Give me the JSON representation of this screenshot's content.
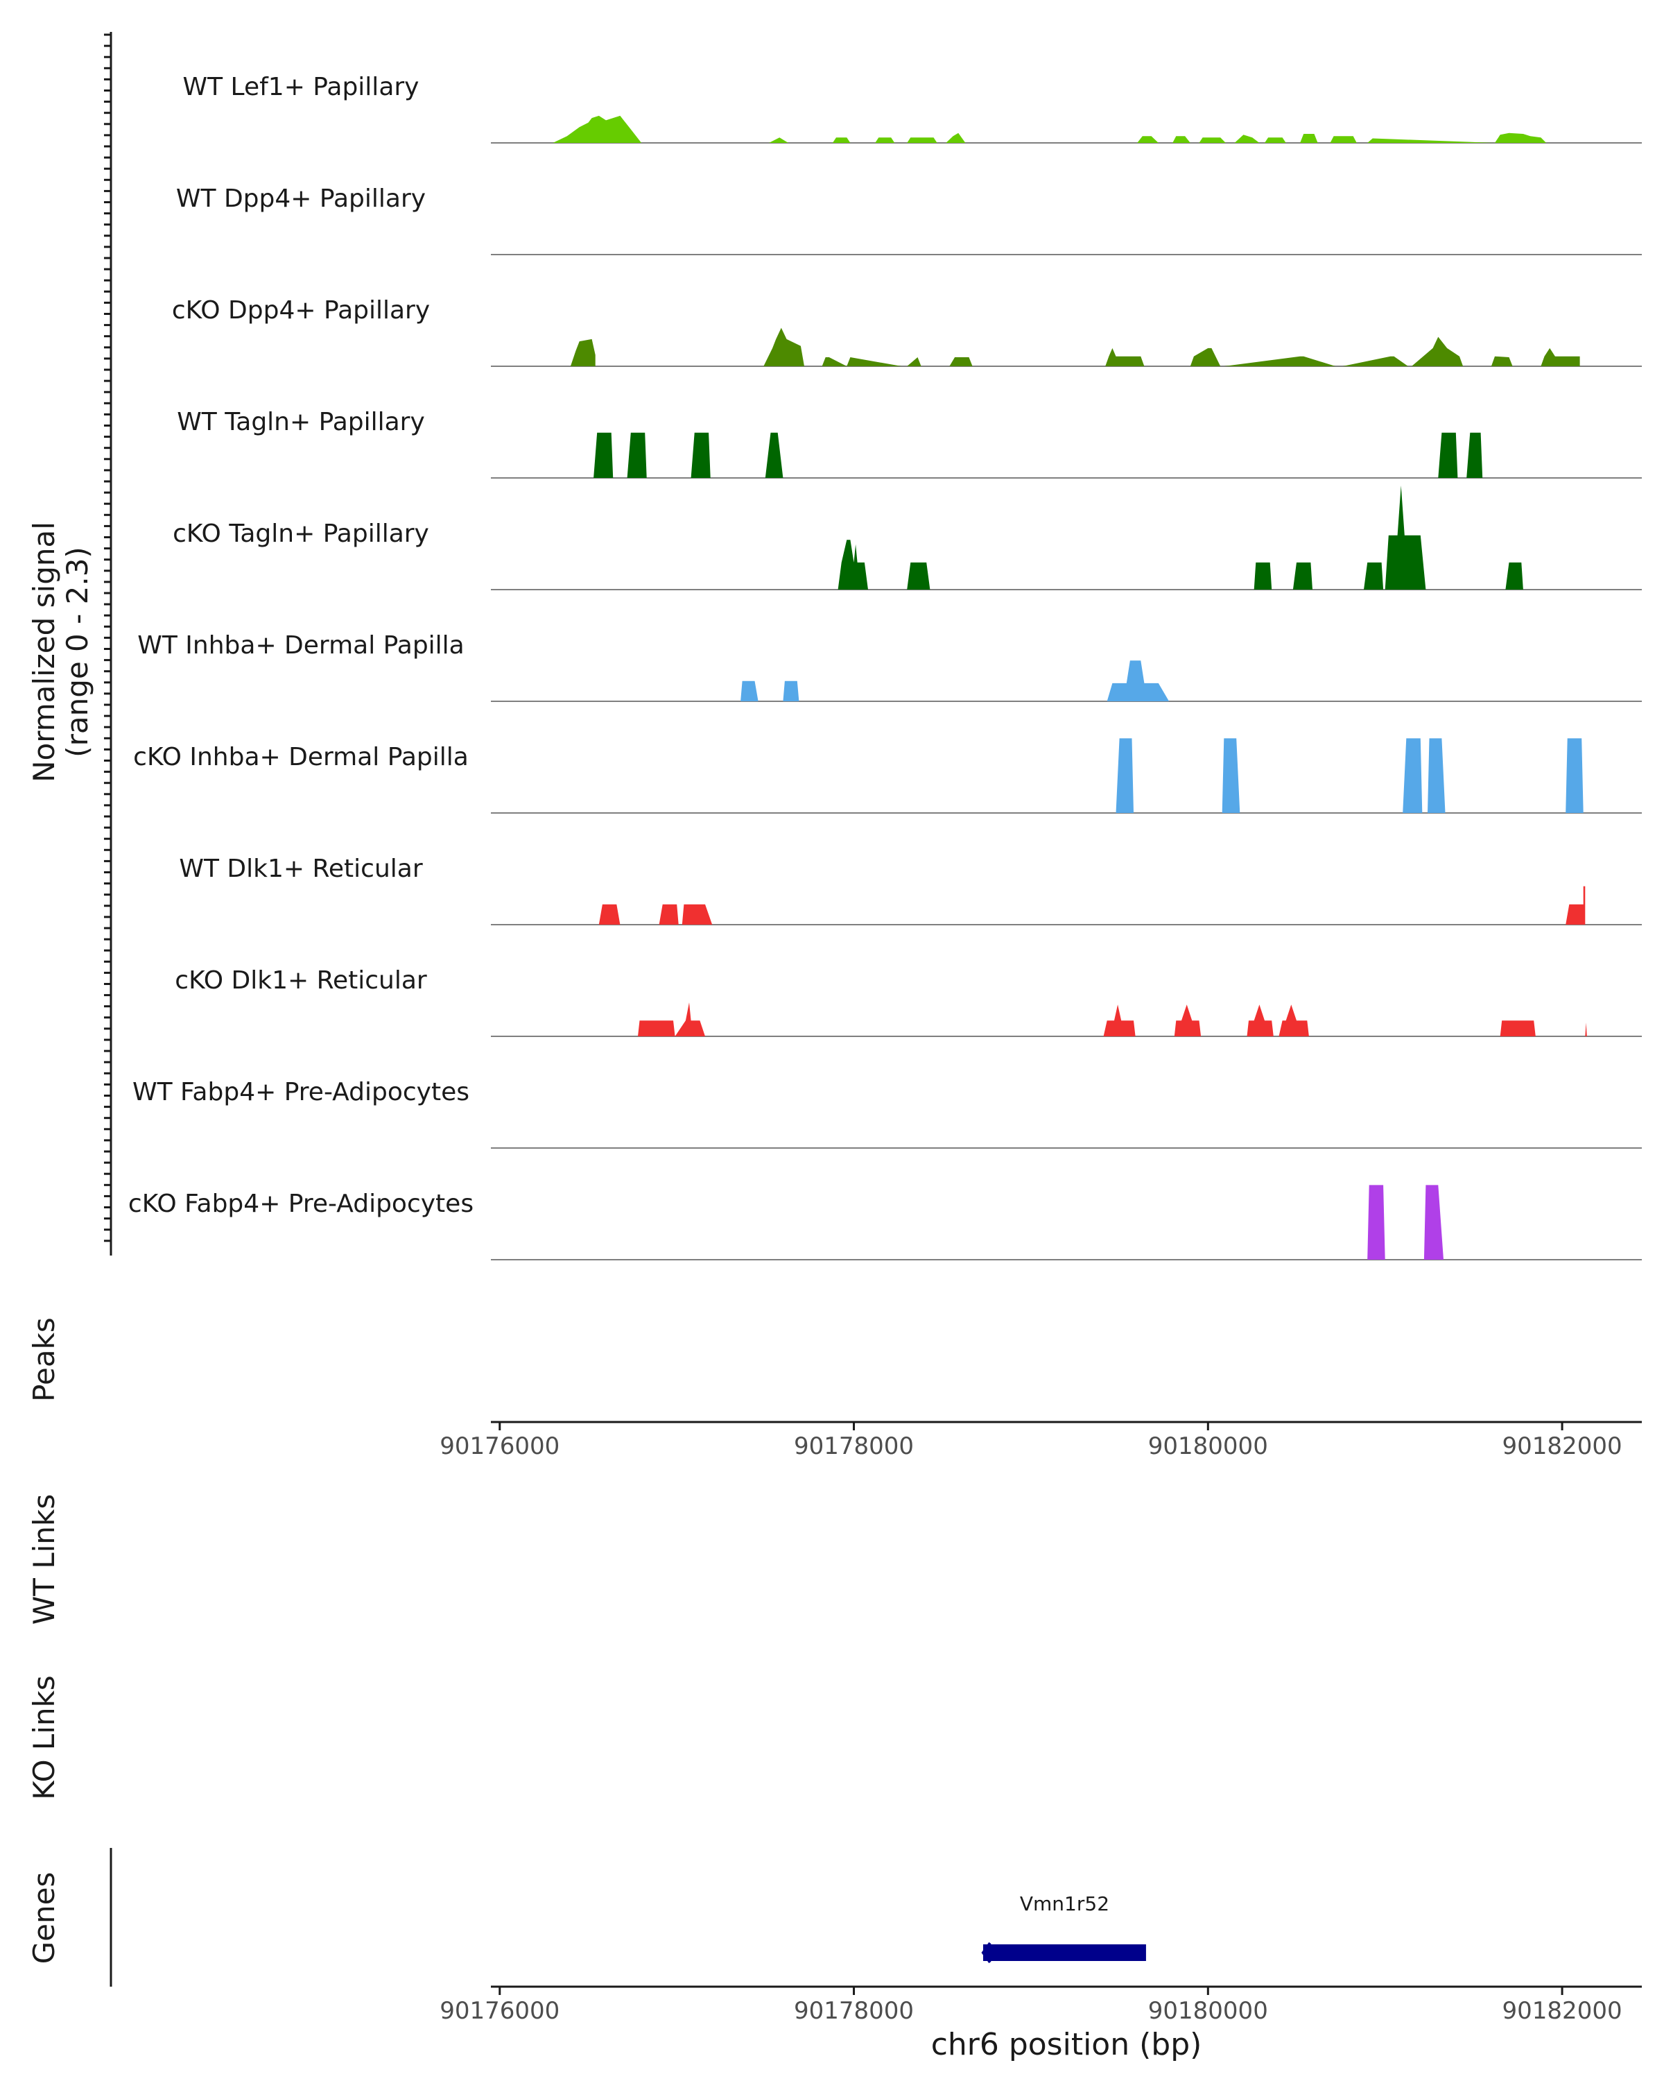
{
  "chart_data": {
    "type": "area",
    "title": "",
    "chromosome": "chr6",
    "xlabel": "chr6 position (bp)",
    "xlim": [
      90175950,
      90182450
    ],
    "xticks": [
      90176000,
      90178000,
      90180000,
      90182000
    ],
    "ylabel": "Normalized signal",
    "ylabel_range": "(range 0 - 2.3)",
    "ylim": [
      0,
      2.3
    ],
    "tracks": [
      {
        "name": "WT Lef1+ Papillary",
        "color": "#66cc00",
        "x": [
          90176300,
          90176380,
          90176450,
          90176500,
          90176520,
          90176560,
          90176600,
          90176640,
          90176680,
          90176700,
          90176740,
          90176800,
          90176800,
          90177520,
          90177580,
          90177630,
          90177880,
          90177900,
          90177960,
          90177980,
          90178120,
          90178140,
          90178210,
          90178230,
          90178300,
          90178320,
          90178450,
          90178470,
          90178520,
          90178560,
          90178590,
          90178630,
          90179600,
          90179630,
          90179680,
          90179720,
          90179800,
          90179820,
          90179870,
          90179900,
          90179950,
          90179970,
          90180070,
          90180100,
          90180150,
          90180200,
          90180250,
          90180290,
          90180320,
          90180340,
          90180420,
          90180440,
          90180520,
          90180540,
          90180600,
          90180620,
          90180690,
          90180710,
          90180820,
          90180840,
          90180900,
          90180930,
          90181620,
          90181650,
          90181700,
          90181780,
          90181820,
          90181880,
          90181910
        ],
        "y": [
          0,
          0.15,
          0.35,
          0.45,
          0.55,
          0.6,
          0.5,
          0.55,
          0.6,
          0.5,
          0.3,
          0,
          0,
          0,
          0.12,
          0,
          0,
          0.12,
          0.12,
          0,
          0,
          0.12,
          0.12,
          0,
          0,
          0.12,
          0.12,
          0,
          0,
          0.15,
          0.22,
          0,
          0,
          0.15,
          0.15,
          0,
          0,
          0.15,
          0.15,
          0,
          0,
          0.12,
          0.12,
          0,
          0,
          0.18,
          0.12,
          0,
          0,
          0.12,
          0.12,
          0,
          0,
          0.2,
          0.2,
          0,
          0,
          0.15,
          0.15,
          0,
          0,
          0.1,
          0,
          0.18,
          0.22,
          0.2,
          0.15,
          0.12,
          0
        ]
      },
      {
        "name": "WT Dpp4+ Papillary",
        "color": "#4d8a00",
        "x": [],
        "y": []
      },
      {
        "name": "cKO Dpp4+ Papillary",
        "color": "#4d8a00",
        "x": [
          90176400,
          90176430,
          90176450,
          90176520,
          90176540,
          90176540,
          90177490,
          90177540,
          90177560,
          90177590,
          90177620,
          90177700,
          90177720,
          90177820,
          90177840,
          90177860,
          90177960,
          90177980,
          90178270,
          90178300,
          90178360,
          90178380,
          90178540,
          90178570,
          90178650,
          90178670,
          90179420,
          90179440,
          90179460,
          90179480,
          90179620,
          90179640,
          90179900,
          90179920,
          90180000,
          90180020,
          90180070,
          90180090,
          90180520,
          90180540,
          90180720,
          90180760,
          90181030,
          90181050,
          90181130,
          90181150,
          90181270,
          90181300,
          90181350,
          90181420,
          90181440,
          90181600,
          90181620,
          90181700,
          90181720,
          90181880,
          90181900,
          90181930,
          90181960,
          90182100,
          90182100
        ],
        "y": [
          0,
          0.35,
          0.55,
          0.6,
          0.25,
          0,
          0,
          0.4,
          0.6,
          0.85,
          0.6,
          0.45,
          0,
          0,
          0.2,
          0.2,
          0,
          0.2,
          0,
          0,
          0.2,
          0,
          0,
          0.2,
          0.2,
          0,
          0,
          0.22,
          0.4,
          0.22,
          0.22,
          0,
          0,
          0.22,
          0.4,
          0.4,
          0,
          0,
          0.22,
          0.22,
          0,
          0,
          0.22,
          0.22,
          0,
          0,
          0.4,
          0.65,
          0.4,
          0.22,
          0,
          0,
          0.22,
          0.2,
          0,
          0,
          0.22,
          0.4,
          0.22,
          0.22,
          0
        ]
      },
      {
        "name": "WT Tagln+ Papillary",
        "color": "#006600",
        "x": [
          90176530,
          90176550,
          90176630,
          90176640,
          90176720,
          90176740,
          90176820,
          90176830,
          90177080,
          90177100,
          90177180,
          90177190,
          90177500,
          90177530,
          90177570,
          90177600,
          90181300,
          90181320,
          90181400,
          90181410,
          90181460,
          90181480,
          90181540,
          90181550
        ],
        "y": [
          0,
          1.0,
          1.0,
          0,
          0,
          1.0,
          1.0,
          0,
          0,
          1.0,
          1.0,
          0,
          0,
          1.0,
          1.0,
          0,
          0,
          1.0,
          1.0,
          0,
          0,
          1.0,
          1.0,
          0
        ]
      },
      {
        "name": "cKO Tagln+ Papillary",
        "color": "#006600",
        "x": [
          90177910,
          90177930,
          90177960,
          90177980,
          90178000,
          90178010,
          90178020,
          90178030,
          90178060,
          90178080,
          90178300,
          90178320,
          90178410,
          90178430,
          90180260,
          90180270,
          90180350,
          90180360,
          90180480,
          90180500,
          90180580,
          90180590,
          90180880,
          90180900,
          90180980,
          90180990,
          90181000,
          90181020,
          90181070,
          90181090,
          90181110,
          90181200,
          90181230,
          90181680,
          90181700,
          90181770,
          90181780
        ],
        "y": [
          0,
          0.6,
          1.1,
          1.1,
          0.6,
          1.0,
          0.6,
          0.6,
          0.6,
          0,
          0,
          0.6,
          0.6,
          0,
          0,
          0.6,
          0.6,
          0,
          0,
          0.6,
          0.6,
          0,
          0,
          0.6,
          0.6,
          0,
          0,
          1.2,
          1.2,
          2.3,
          1.2,
          1.2,
          0,
          0,
          0.6,
          0.6,
          0
        ]
      },
      {
        "name": "WT Inhba+ Dermal Papilla",
        "color": "#56a8e8",
        "x": [
          90177360,
          90177370,
          90177440,
          90177460,
          90177600,
          90177610,
          90177680,
          90177690,
          90179430,
          90179460,
          90179500,
          90179540,
          90179560,
          90179620,
          90179640,
          90179720,
          90179780
        ],
        "y": [
          0,
          0.45,
          0.45,
          0,
          0,
          0.45,
          0.45,
          0,
          0,
          0.4,
          0.4,
          0.4,
          0.9,
          0.9,
          0.4,
          0.4,
          0
        ]
      },
      {
        "name": "cKO Inhba+ Dermal Papilla",
        "color": "#56a8e8",
        "x": [
          90179480,
          90179500,
          90179570,
          90179580,
          90180080,
          90180090,
          90180160,
          90180180,
          90181100,
          90181120,
          90181200,
          90181210,
          90181240,
          90181250,
          90181320,
          90181340,
          90182020,
          90182030,
          90182110,
          90182120
        ],
        "y": [
          0,
          1.65,
          1.65,
          0,
          0,
          1.65,
          1.65,
          0,
          0,
          1.65,
          1.65,
          0,
          0,
          1.65,
          1.65,
          0,
          0,
          1.65,
          1.65,
          0
        ]
      },
      {
        "name": "WT Dlk1+ Reticular",
        "color": "#f03030",
        "x": [
          90176560,
          90176580,
          90176660,
          90176680,
          90176900,
          90176920,
          90177000,
          90177010,
          90177030,
          90177040,
          90177160,
          90177200,
          90182020,
          90182040,
          90182120,
          90182120,
          90182130,
          90182130
        ],
        "y": [
          0,
          0.45,
          0.45,
          0,
          0,
          0.45,
          0.45,
          0,
          0,
          0.45,
          0.45,
          0,
          0,
          0.45,
          0.45,
          0.85,
          0.85,
          0
        ]
      },
      {
        "name": "cKO Dlk1+ Reticular",
        "color": "#f03030",
        "x": [
          90176780,
          90176790,
          90176980,
          90176990,
          90177050,
          90177070,
          90177080,
          90177130,
          90177160,
          90179410,
          90179430,
          90179470,
          90179490,
          90179510,
          90179580,
          90179590,
          90179810,
          90179820,
          90179850,
          90179880,
          90179910,
          90179950,
          90179960,
          90180220,
          90180230,
          90180260,
          90180290,
          90180320,
          90180360,
          90180370,
          90180400,
          90180420,
          90180440,
          90180470,
          90180500,
          90180560,
          90180570,
          90181650,
          90181660,
          90181840,
          90181850,
          90182130,
          90182135,
          90182140
        ],
        "y": [
          0,
          0.35,
          0.35,
          0,
          0.35,
          0.75,
          0.35,
          0.35,
          0,
          0,
          0.35,
          0.35,
          0.7,
          0.35,
          0.35,
          0,
          0,
          0.35,
          0.35,
          0.7,
          0.35,
          0.35,
          0,
          0,
          0.35,
          0.35,
          0.7,
          0.35,
          0.35,
          0,
          0,
          0.35,
          0.35,
          0.7,
          0.35,
          0.35,
          0,
          0,
          0.35,
          0.35,
          0,
          0,
          0.3,
          0
        ]
      },
      {
        "name": "WT Fabp4+ Pre-Adipocytes",
        "color": "#b040e8",
        "x": [],
        "y": []
      },
      {
        "name": "cKO Fabp4+ Pre-Adipocytes",
        "color": "#b040e8",
        "x": [
          90180900,
          90180910,
          90180990,
          90181000,
          90181220,
          90181230,
          90181300,
          90181330
        ],
        "y": [
          0,
          1.65,
          1.65,
          0,
          0,
          1.65,
          1.65,
          0
        ]
      }
    ],
    "panel_labels": {
      "peaks": "Peaks",
      "wt_links": "WT Links",
      "ko_links": "KO Links",
      "genes": "Genes"
    },
    "genes": [
      {
        "name": "Vmn1r52",
        "start": 90178730,
        "end": 90179650,
        "strand": "-",
        "color": "#00008b"
      }
    ]
  }
}
